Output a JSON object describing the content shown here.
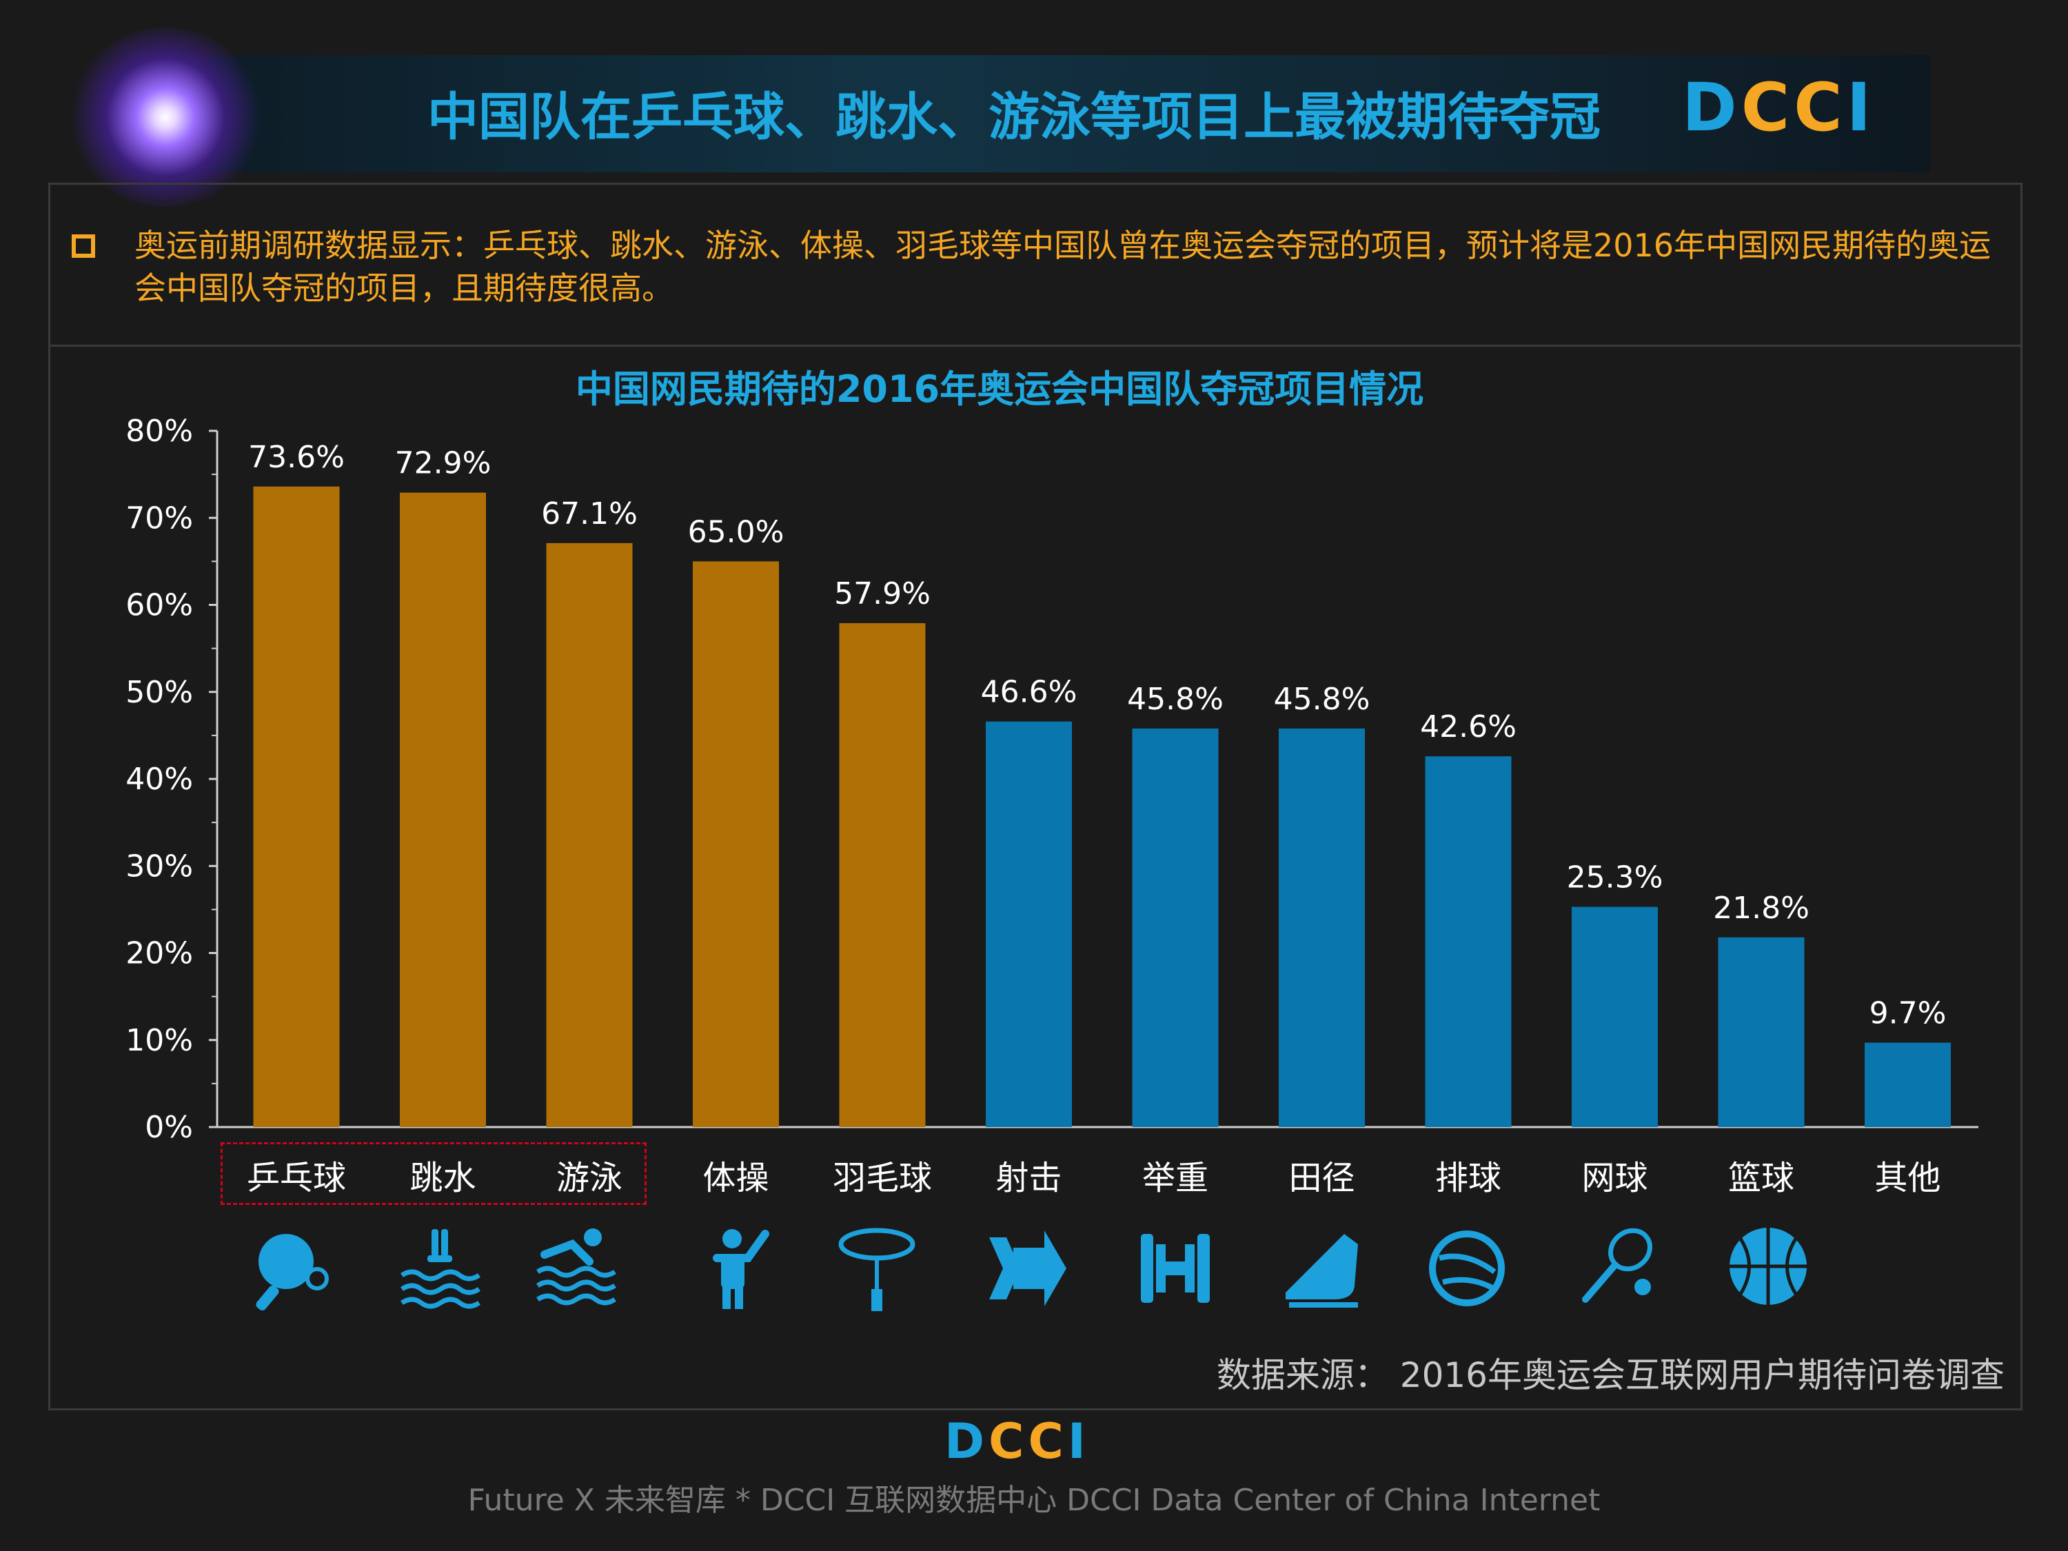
{
  "header": {
    "title": "中国队在乒乓球、跳水、游泳等项目上最被期待夺冠",
    "logo": "DCCI"
  },
  "summary": "奥运前期调研数据显示：乒乓球、跳水、游泳、体操、羽毛球等中国队曾在奥运会夺冠的项目，预计将是2016年中国网民期待的奥运会中国队夺冠的项目，且期待度很高。",
  "chart_data": {
    "type": "bar",
    "title": "中国网民期待的2016年奥运会中国队夺冠项目情况",
    "categories": [
      "乒乓球",
      "跳水",
      "游泳",
      "体操",
      "羽毛球",
      "射击",
      "举重",
      "田径",
      "排球",
      "网球",
      "篮球",
      "其他"
    ],
    "values": [
      73.6,
      72.9,
      67.1,
      65.0,
      57.9,
      46.6,
      45.8,
      45.8,
      42.6,
      25.3,
      21.8,
      9.7
    ],
    "value_labels": [
      "73.6%",
      "72.9%",
      "67.1%",
      "65.0%",
      "57.9%",
      "46.6%",
      "45.8%",
      "45.8%",
      "42.6%",
      "25.3%",
      "21.8%",
      "9.7%"
    ],
    "yticks": [
      "0%",
      "10%",
      "20%",
      "30%",
      "40%",
      "50%",
      "60%",
      "70%",
      "80%"
    ],
    "ylim": [
      0,
      80
    ],
    "xlabel": "",
    "ylabel": "",
    "colors": {
      "highlight": "#b07005",
      "normal": "#0a76ae"
    },
    "highlighted_count": 5,
    "grid": false,
    "icons": [
      "ping-pong-icon",
      "diving-icon",
      "swimming-icon",
      "gymnastics-icon",
      "badminton-icon",
      "shooting-icon",
      "weightlifting-icon",
      "athletics-icon",
      "volleyball-icon",
      "tennis-icon",
      "basketball-icon"
    ]
  },
  "source": "数据来源： 2016年奥运会互联网用户期待问卷调查",
  "footer": "Future X 未来智库 * DCCI 互联网数据中心 DCCI Data Center of China Internet"
}
